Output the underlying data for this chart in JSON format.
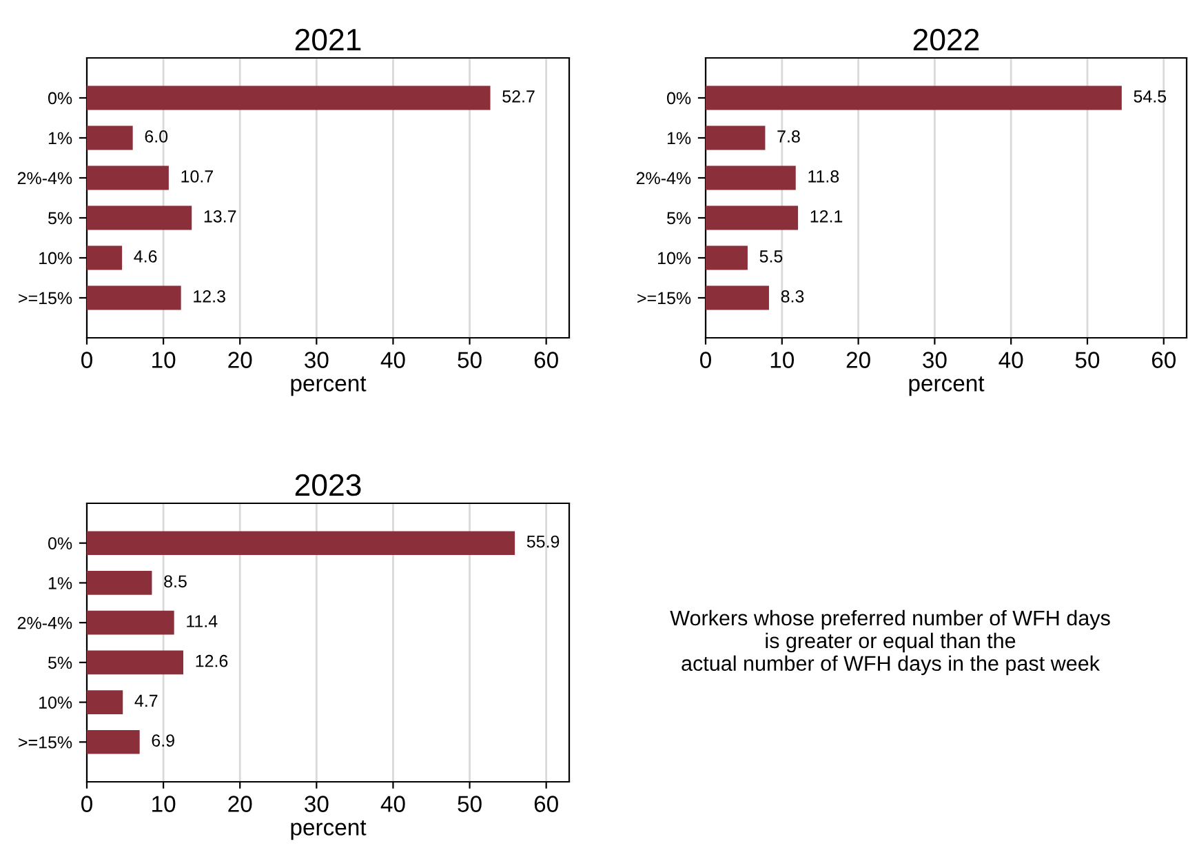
{
  "chart_data": [
    {
      "type": "bar",
      "orientation": "horizontal",
      "title": "2021",
      "xlabel": "percent",
      "categories": [
        "0%",
        "1%",
        "2%-4%",
        "5%",
        "10%",
        ">=15%"
      ],
      "series": [
        {
          "color": "#8b2f3a",
          "values": [
            52.7,
            6.0,
            10.7,
            13.7,
            4.6,
            12.3
          ]
        }
      ],
      "value_labels": [
        "52.7",
        "6.0",
        "10.7",
        "13.7",
        "4.6",
        "12.3"
      ],
      "xlim": [
        0,
        63
      ],
      "xticks": [
        0,
        10,
        20,
        30,
        40,
        50,
        60
      ],
      "grid": "x",
      "legend": false
    },
    {
      "type": "bar",
      "orientation": "horizontal",
      "title": "2022",
      "xlabel": "percent",
      "categories": [
        "0%",
        "1%",
        "2%-4%",
        "5%",
        "10%",
        ">=15%"
      ],
      "series": [
        {
          "color": "#8b2f3a",
          "values": [
            54.5,
            7.8,
            11.8,
            12.1,
            5.5,
            8.3
          ]
        }
      ],
      "value_labels": [
        "54.5",
        "7.8",
        "11.8",
        "12.1",
        "5.5",
        "8.3"
      ],
      "xlim": [
        0,
        63
      ],
      "xticks": [
        0,
        10,
        20,
        30,
        40,
        50,
        60
      ],
      "grid": "x",
      "legend": false
    },
    {
      "type": "bar",
      "orientation": "horizontal",
      "title": "2023",
      "xlabel": "percent",
      "categories": [
        "0%",
        "1%",
        "2%-4%",
        "5%",
        "10%",
        ">=15%"
      ],
      "series": [
        {
          "color": "#8b2f3a",
          "values": [
            55.9,
            8.5,
            11.4,
            12.6,
            4.7,
            6.9
          ]
        }
      ],
      "value_labels": [
        "55.9",
        "8.5",
        "11.4",
        "12.6",
        "4.7",
        "6.9"
      ],
      "xlim": [
        0,
        63
      ],
      "xticks": [
        0,
        10,
        20,
        30,
        40,
        50,
        60
      ],
      "grid": "x",
      "legend": false
    },
    {
      "type": "other",
      "annotations": [
        "Workers whose preferred number of WFH days\nis greater or equal than the\nactual number of WFH days in the past week"
      ]
    }
  ]
}
